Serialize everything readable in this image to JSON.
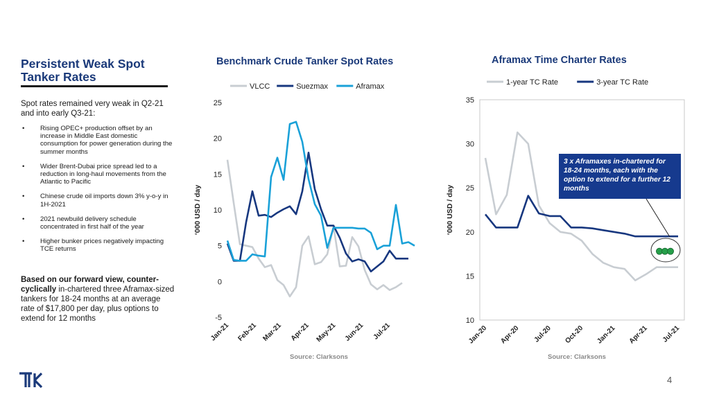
{
  "left_panel": {
    "title": "Persistent Weak Spot Tanker Rates",
    "intro": "Spot rates remained very weak in Q2-21 and into early Q3-21:",
    "bullets": [
      "Rising OPEC+ production offset by an increase in Middle East domestic consumption for power generation during the summer months",
      "Wider Brent-Dubai price spread led to a reduction in long-haul movements from the Atlantic to Pacific",
      "Chinese crude oil imports down 3% y-o-y in 1H-2021",
      "2021 newbuild delivery schedule concentrated in first half of the year",
      "Higher bunker prices negatively impacting TCE returns"
    ],
    "bullet_symbol": "•",
    "conclusion_bold": "Based on our forward view, counter-cyclically",
    "conclusion_rest": " in-chartered three Aframax-sized tankers for 18-24 months at an average rate of $17,800 per day, plus options to extend for 12 months"
  },
  "page_number": "4",
  "logo_icon": "tk-logo-icon",
  "colors": {
    "navy": "#1b3a7a",
    "vlcc": "#c8cdd2",
    "suezmax": "#17377f",
    "aframax": "#1aa1d8",
    "one_year": "#c8cdd2",
    "three_year": "#17377f",
    "dots": "#26a04a"
  },
  "chart_data": [
    {
      "type": "line",
      "title": "Benchmark Crude Tanker Spot Rates",
      "ylabel": "‘000 USD / day",
      "source": "Source: Clarksons",
      "ylim": [
        -5,
        25
      ],
      "yticks": [
        -5,
        0,
        5,
        10,
        15,
        20,
        25
      ],
      "x_tick_labels": [
        "Jan-21",
        "Feb-21",
        "Mar-21",
        "Apr-21",
        "May-21",
        "Jun-21",
        "Jul-21"
      ],
      "x_tick_positions": [
        0,
        4.43,
        8.43,
        12.86,
        17.14,
        21.57,
        25.86
      ],
      "x": [
        0,
        1,
        2,
        3,
        4,
        5,
        6,
        7,
        8,
        9,
        10,
        11,
        12,
        13,
        14,
        15,
        16,
        17,
        18,
        19,
        20,
        21,
        22,
        23,
        24,
        25,
        26,
        27,
        28,
        29,
        30
      ],
      "legend_position": "top",
      "series": [
        {
          "name": "VLCC",
          "color": "#c8cdd2",
          "values": [
            17,
            11,
            5.2,
            5,
            4.8,
            3.2,
            2,
            2.3,
            0.2,
            -0.5,
            -2.1,
            -0.8,
            5,
            6.3,
            2.4,
            2.7,
            3.8,
            7.7,
            2.1,
            2.2,
            6.2,
            4.9,
            1.6,
            -0.4,
            -1.1,
            -0.5,
            -1.2,
            -0.8,
            -0.2,
            null,
            null
          ]
        },
        {
          "name": "Suezmax",
          "color": "#17377f",
          "values": [
            5.3,
            2.9,
            2.9,
            8.3,
            12.6,
            9.2,
            9.3,
            9,
            9.6,
            10.1,
            10.5,
            9.4,
            12.6,
            18,
            12.9,
            10.1,
            7.8,
            7.8,
            6.1,
            3.9,
            2.8,
            3.1,
            2.8,
            1.4,
            2.1,
            2.8,
            4.3,
            3.2,
            3.2,
            3.2,
            null
          ]
        },
        {
          "name": "Aframax",
          "color": "#1aa1d8",
          "values": [
            5.7,
            3,
            2.9,
            2.9,
            3.8,
            3.6,
            3.5,
            14.6,
            17.3,
            14.2,
            22,
            22.3,
            19.5,
            14.3,
            10.8,
            9.2,
            4.7,
            7.5,
            7.5,
            7.5,
            7.5,
            7.4,
            7.4,
            6.8,
            4.5,
            5,
            5,
            10.7,
            5.3,
            5.5,
            5
          ]
        }
      ]
    },
    {
      "type": "line",
      "title": "Aframax Time Charter Rates",
      "ylabel": "‘000 USD / day",
      "source": "Source: Clarksons",
      "ylim": [
        10,
        35
      ],
      "yticks": [
        10,
        15,
        20,
        25,
        30,
        35
      ],
      "x_tick_labels": [
        "Jan-20",
        "Apr-20",
        "Jul-20",
        "Oct-20",
        "Jan-21",
        "Apr-21",
        "Jul-21"
      ],
      "x_tick_positions": [
        0,
        3,
        6,
        9,
        12,
        15,
        18
      ],
      "x": [
        0,
        1,
        2,
        3,
        4,
        5,
        6,
        7,
        8,
        9,
        10,
        11,
        12,
        13,
        14,
        15,
        16,
        17,
        18
      ],
      "legend_position": "top",
      "series": [
        {
          "name": "1-year TC Rate",
          "color": "#c8cdd2",
          "values": [
            28.4,
            22,
            24.2,
            31.3,
            30,
            23,
            21,
            20,
            19.8,
            19,
            17.5,
            16.5,
            16,
            15.8,
            14.5,
            15.2,
            16,
            16,
            16
          ]
        },
        {
          "name": "3-year TC Rate",
          "color": "#17377f",
          "values": [
            22,
            20.5,
            20.5,
            20.5,
            24.1,
            22.1,
            21.8,
            21.8,
            20.5,
            20.5,
            20.4,
            20.2,
            20,
            19.8,
            19.5,
            19.5,
            19.5,
            19.5,
            19.5
          ]
        }
      ],
      "annotation": "3 x Aframaxes in-chartered for 18-24 months, each with the option to extend for a further 12 months",
      "highlight_points": [
        17.8,
        17.8,
        17.8
      ]
    }
  ]
}
